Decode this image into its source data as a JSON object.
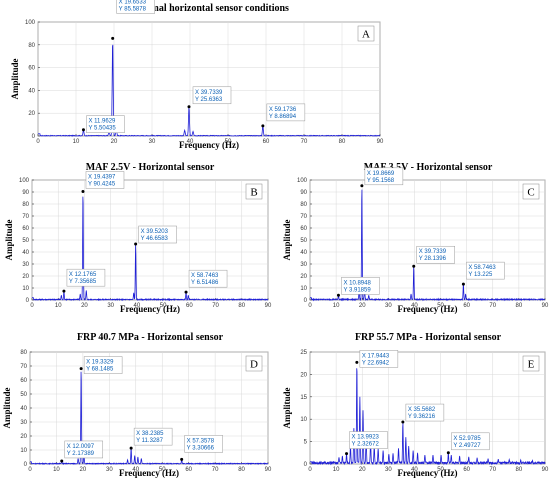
{
  "chart_data": [
    {
      "type": "line",
      "title": "Optimal horizontal sensor conditions",
      "panel_letter": "A",
      "xlabel": "Frequency (Hz)",
      "ylabel": "Amplitude",
      "xlim": [
        0,
        90
      ],
      "ylim": [
        0,
        100
      ],
      "xticks": [
        0,
        10,
        20,
        30,
        40,
        50,
        60,
        70,
        80,
        90
      ],
      "yticks": [
        0,
        20,
        40,
        60,
        80,
        100
      ],
      "grid": true,
      "series_color": "#1f1fd6",
      "peaks": [
        {
          "x": 11.9629,
          "y": 5.50435,
          "label_x": "X 11.9629",
          "label_y": "Y 5.50435"
        },
        {
          "x": 19.6533,
          "y": 85.5878,
          "label_x": "X 19.6533",
          "label_y": "Y 85.5878"
        },
        {
          "x": 39.7339,
          "y": 25.6363,
          "label_x": "X 39.7339",
          "label_y": "Y 25.6363"
        },
        {
          "x": 59.1736,
          "y": 8.86894,
          "label_x": "X 59.1736",
          "label_y": "Y 8.86894"
        }
      ],
      "extra_peaks": [
        {
          "x": 20.6,
          "y": 6
        },
        {
          "x": 18.7,
          "y": 4
        },
        {
          "x": 38.6,
          "y": 5
        },
        {
          "x": 40.8,
          "y": 4
        }
      ],
      "noise": 0.6
    },
    {
      "type": "line",
      "title": "MAF 2.5V - Horizontal sensor",
      "panel_letter": "B",
      "xlabel": "Frequency (Hz)",
      "ylabel": "Amplitude",
      "xlim": [
        0,
        90
      ],
      "ylim": [
        0,
        100
      ],
      "xticks": [
        0,
        10,
        20,
        30,
        40,
        50,
        60,
        70,
        80,
        90
      ],
      "yticks": [
        0,
        10,
        20,
        30,
        40,
        50,
        60,
        70,
        80,
        90,
        100
      ],
      "grid": true,
      "series_color": "#1f1fd6",
      "peaks": [
        {
          "x": 12.1765,
          "y": 7.35685,
          "label_x": "X 12.1765",
          "label_y": "Y 7.35685"
        },
        {
          "x": 19.4397,
          "y": 90.4245,
          "label_x": "X 19.4397",
          "label_y": "Y 90.4245"
        },
        {
          "x": 39.5203,
          "y": 46.6583,
          "label_x": "X 39.5203",
          "label_y": "Y 46.6583"
        },
        {
          "x": 58.7463,
          "y": 6.51486,
          "label_x": "X 58.7463",
          "label_y": "Y 6.51486"
        }
      ],
      "extra_peaks": [
        {
          "x": 20.7,
          "y": 8
        },
        {
          "x": 18.4,
          "y": 5
        },
        {
          "x": 11.2,
          "y": 4
        },
        {
          "x": 38.8,
          "y": 6
        },
        {
          "x": 59.6,
          "y": 4
        }
      ],
      "noise": 0.8
    },
    {
      "type": "line",
      "title": "MAF 3.5V - Horizontal sensor",
      "panel_letter": "C",
      "xlabel": "Frequency (Hz)",
      "ylabel": "Amplitude",
      "xlim": [
        0,
        90
      ],
      "ylim": [
        0,
        100
      ],
      "xticks": [
        0,
        10,
        20,
        30,
        40,
        50,
        60,
        70,
        80,
        90
      ],
      "yticks": [
        0,
        10,
        20,
        30,
        40,
        50,
        60,
        70,
        80,
        90,
        100
      ],
      "grid": true,
      "series_color": "#1f1fd6",
      "peaks": [
        {
          "x": 10.8948,
          "y": 3.91859,
          "label_x": "X 10.8948",
          "label_y": "Y 3.91859"
        },
        {
          "x": 19.8669,
          "y": 95.1568,
          "label_x": "X 19.8669",
          "label_y": "Y 95.1568"
        },
        {
          "x": 39.7339,
          "y": 28.1396,
          "label_x": "X 39.7339",
          "label_y": "Y 28.1396"
        },
        {
          "x": 58.7463,
          "y": 13.225,
          "label_x": "X 58.7463",
          "label_y": "Y 13.225"
        }
      ],
      "extra_peaks": [
        {
          "x": 20.9,
          "y": 9
        },
        {
          "x": 18.8,
          "y": 7
        },
        {
          "x": 22.5,
          "y": 4
        },
        {
          "x": 38.7,
          "y": 5
        },
        {
          "x": 59.6,
          "y": 5
        }
      ],
      "noise": 0.9
    },
    {
      "type": "line",
      "title": "FRP 40.7 MPa - Horizontal sensor",
      "panel_letter": "D",
      "xlabel": "Frequency (Hz)",
      "ylabel": "Amplitude",
      "xlim": [
        0,
        90
      ],
      "ylim": [
        0,
        80
      ],
      "xticks": [
        0,
        10,
        20,
        30,
        40,
        50,
        60,
        70,
        80,
        90
      ],
      "yticks": [
        0,
        10,
        20,
        30,
        40,
        50,
        60,
        70,
        80
      ],
      "grid": true,
      "series_color": "#1f1fd6",
      "peaks": [
        {
          "x": 12.0097,
          "y": 2.17389,
          "label_x": "X 12.0097",
          "label_y": "Y 2.17389"
        },
        {
          "x": 19.3329,
          "y": 68.1485,
          "label_x": "X 19.3329",
          "label_y": "Y 68.1485"
        },
        {
          "x": 38.2385,
          "y": 11.3287,
          "label_x": "X 38.2385",
          "label_y": "Y 11.3287"
        },
        {
          "x": 57.3578,
          "y": 3.30666,
          "label_x": "X 57.3578",
          "label_y": "Y 3.30666"
        }
      ],
      "extra_peaks": [
        {
          "x": 20.4,
          "y": 6
        },
        {
          "x": 18.2,
          "y": 4
        },
        {
          "x": 39.6,
          "y": 6
        },
        {
          "x": 40.8,
          "y": 5
        },
        {
          "x": 42.1,
          "y": 4
        },
        {
          "x": 36.9,
          "y": 3
        }
      ],
      "noise": 0.7
    },
    {
      "type": "line",
      "title": "FRP 55.7 MPa - Horizontal sensor",
      "panel_letter": "E",
      "xlabel": "Frequency (Hz)",
      "ylabel": "Amplitude",
      "xlim": [
        0,
        90
      ],
      "ylim": [
        0,
        25
      ],
      "xticks": [
        0,
        10,
        20,
        30,
        40,
        50,
        60,
        70,
        80,
        90
      ],
      "yticks": [
        0,
        5,
        10,
        15,
        20,
        25
      ],
      "grid": true,
      "series_color": "#1f1fd6",
      "peaks": [
        {
          "x": 13.9923,
          "y": 2.32672,
          "label_x": "X 13.9923",
          "label_y": "Y 2.32672"
        },
        {
          "x": 17.9443,
          "y": 22.6942,
          "label_x": "X 17.9443",
          "label_y": "Y 22.6942"
        },
        {
          "x": 35.5682,
          "y": 9.36216,
          "label_x": "X 35.5682",
          "label_y": "Y 9.36216"
        },
        {
          "x": 52.9785,
          "y": 2.49727,
          "label_x": "X 52.9785",
          "label_y": "Y 2.49727"
        }
      ],
      "extra_peaks": [
        {
          "x": 19.1,
          "y": 15
        },
        {
          "x": 16.8,
          "y": 8
        },
        {
          "x": 20.3,
          "y": 12
        },
        {
          "x": 21.5,
          "y": 6
        },
        {
          "x": 15.5,
          "y": 4
        },
        {
          "x": 23.2,
          "y": 5
        },
        {
          "x": 24.6,
          "y": 4
        },
        {
          "x": 26.1,
          "y": 3.5
        },
        {
          "x": 28.0,
          "y": 3
        },
        {
          "x": 33.9,
          "y": 3.5
        },
        {
          "x": 36.7,
          "y": 6
        },
        {
          "x": 37.8,
          "y": 4
        },
        {
          "x": 39.5,
          "y": 3
        },
        {
          "x": 41.2,
          "y": 2.5
        },
        {
          "x": 44.0,
          "y": 2
        },
        {
          "x": 47.1,
          "y": 2
        },
        {
          "x": 50.2,
          "y": 2
        },
        {
          "x": 54.1,
          "y": 2
        },
        {
          "x": 57.3,
          "y": 1.8
        },
        {
          "x": 60.8,
          "y": 1.6
        },
        {
          "x": 64.0,
          "y": 1.4
        },
        {
          "x": 68.2,
          "y": 1.2
        },
        {
          "x": 72.1,
          "y": 1.1
        },
        {
          "x": 76.3,
          "y": 1
        },
        {
          "x": 80.7,
          "y": 0.9
        },
        {
          "x": 85.2,
          "y": 0.8
        },
        {
          "x": 11.1,
          "y": 1.5
        },
        {
          "x": 12.4,
          "y": 1.8
        },
        {
          "x": 30.2,
          "y": 2.2
        },
        {
          "x": 31.8,
          "y": 2.4
        }
      ],
      "noise": 0.9
    }
  ]
}
